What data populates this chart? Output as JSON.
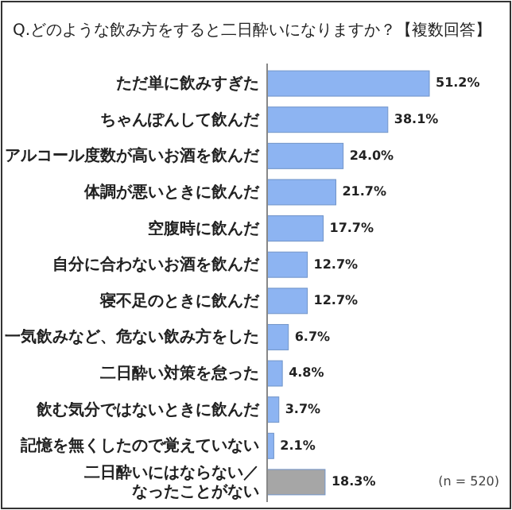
{
  "chart_data": {
    "type": "bar",
    "orientation": "horizontal",
    "title": "Q.どのような飲み方をすると二日酔いになりますか？【複数回答】",
    "categories": [
      "ただ単に飲みすぎた",
      "ちゃんぽんして飲んだ",
      "アルコール度数が高いお酒を飲んだ",
      "体調が悪いときに飲んだ",
      "空腹時に飲んだ",
      "自分に合わないお酒を飲んだ",
      "寝不足のときに飲んだ",
      "一気飲みなど、危ない飲み方をした",
      "二日酔い対策を怠った",
      "飲む気分ではないときに飲んだ",
      "記憶を無くしたので覚えていない",
      "二日酔いにはならない／なったことがない"
    ],
    "values": [
      51.2,
      38.1,
      24.0,
      21.7,
      17.7,
      12.7,
      12.7,
      6.7,
      4.8,
      3.7,
      2.1,
      18.3
    ],
    "colors": [
      "#8db4f2",
      "#8db4f2",
      "#8db4f2",
      "#8db4f2",
      "#8db4f2",
      "#8db4f2",
      "#8db4f2",
      "#8db4f2",
      "#8db4f2",
      "#8db4f2",
      "#8db4f2",
      "#a6a6a6"
    ],
    "value_labels": [
      "51.2%",
      "38.1%",
      "24.0%",
      "21.7%",
      "17.7%",
      "12.7%",
      "12.7%",
      "6.7%",
      "4.8%",
      "3.7%",
      "2.1%",
      "18.3%"
    ],
    "annotations": [
      "(n = 520)"
    ]
  }
}
